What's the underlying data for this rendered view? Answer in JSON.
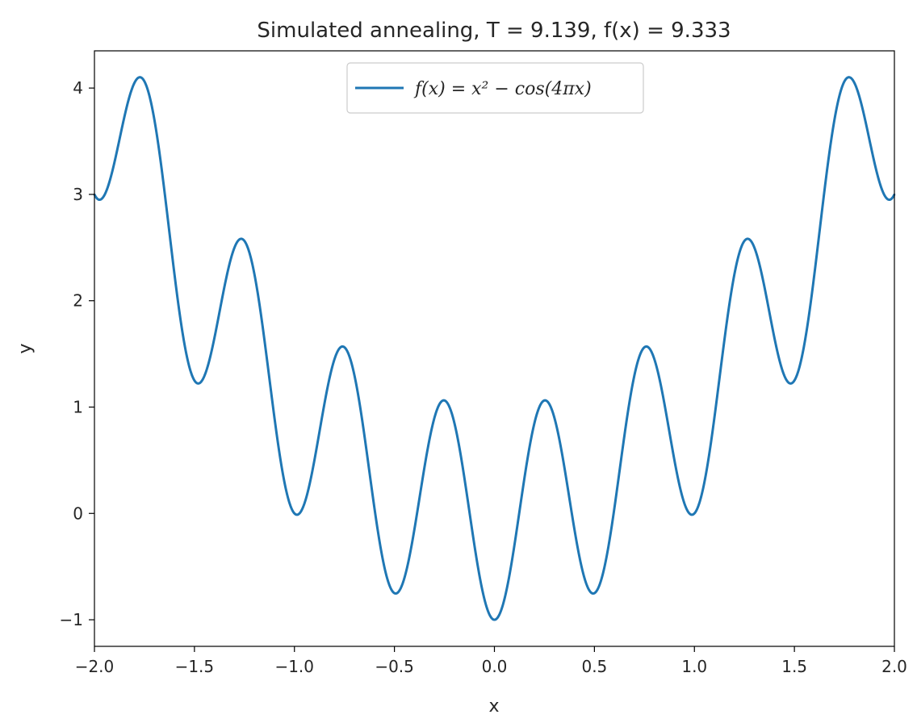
{
  "chart_data": {
    "type": "line",
    "title": "Simulated annealing, T = 9.139, f(x) = 9.333",
    "xlabel": "x",
    "ylabel": "y",
    "xlim": [
      -2.0,
      2.0
    ],
    "ylim": [
      -1.25,
      4.35
    ],
    "x_ticks": [
      -2.0,
      -1.5,
      -1.0,
      -0.5,
      0.0,
      0.5,
      1.0,
      1.5,
      2.0
    ],
    "x_tick_labels": [
      "−2.0",
      "−1.5",
      "−1.0",
      "−0.5",
      "0.0",
      "0.5",
      "1.0",
      "1.5",
      "2.0"
    ],
    "y_ticks": [
      -1,
      0,
      1,
      2,
      3,
      4
    ],
    "y_tick_labels": [
      "−1",
      "0",
      "1",
      "2",
      "3",
      "4"
    ],
    "grid": false,
    "legend_position": "upper-center",
    "series": [
      {
        "name": "f(x) = x² − cos(4πx)",
        "color": "#1f77b4",
        "function": "x^2 - cos(4*pi*x)",
        "x": [
          -2.0,
          -1.75,
          -1.5,
          -1.25,
          -1.0,
          -0.75,
          -0.5,
          -0.25,
          0.0,
          0.25,
          0.5,
          0.75,
          1.0,
          1.25,
          1.5,
          1.75,
          2.0
        ],
        "y": [
          3.0,
          4.0625,
          1.25,
          2.5625,
          0.0,
          1.5625,
          -0.75,
          1.0625,
          -1.0,
          1.0625,
          -0.75,
          1.5625,
          0.0,
          2.5625,
          1.25,
          4.0625,
          3.0
        ]
      }
    ]
  }
}
